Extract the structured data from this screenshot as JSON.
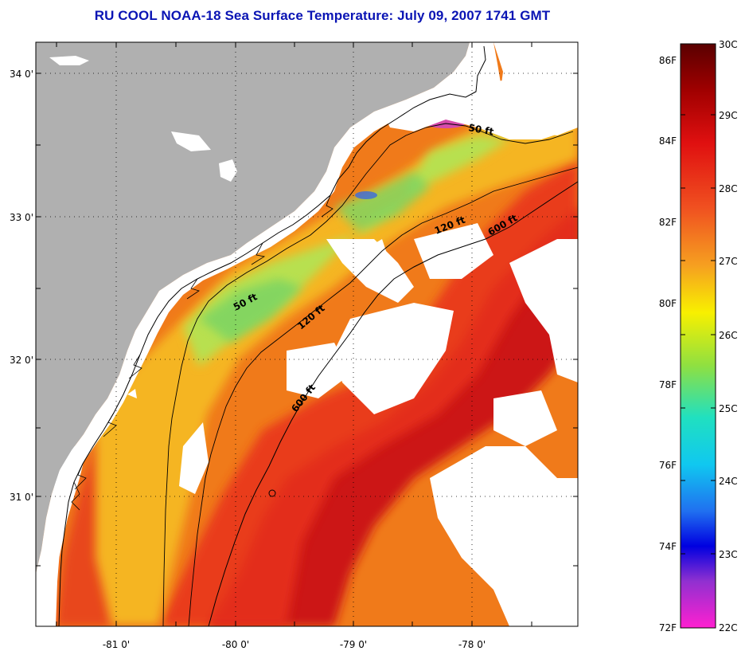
{
  "title": "RU COOL  NOAA-18  Sea Surface Temperature:  July 09, 2007 1741 GMT",
  "map": {
    "lon_labels": [
      "-81 0'",
      "-80 0'",
      "-79 0'",
      "-78 0'"
    ],
    "lat_labels": [
      "34 0'",
      "33 0'",
      "32 0'",
      "31 0'"
    ],
    "contour_labels": [
      "50 ft",
      "120 ft",
      "600 ft",
      "50 ft",
      "120 ft",
      "600 ft"
    ],
    "colors": {
      "land": "#b0b0b0",
      "cloud": "#ffffff",
      "warmest": "#cc1010",
      "warm": "#f03c10",
      "mid": "#f5a020",
      "cool": "#c8e040",
      "coolest": "#80d870"
    }
  },
  "colorbar": {
    "celsius_labels": [
      "30C",
      "29C",
      "28C",
      "27C",
      "26C",
      "25C",
      "24C",
      "23C",
      "22C"
    ],
    "fahrenheit_labels": [
      "86F",
      "84F",
      "82F",
      "80F",
      "78F",
      "76F",
      "74F",
      "72F"
    ],
    "range_c": [
      22,
      30
    ],
    "range_f": [
      72,
      86
    ]
  }
}
